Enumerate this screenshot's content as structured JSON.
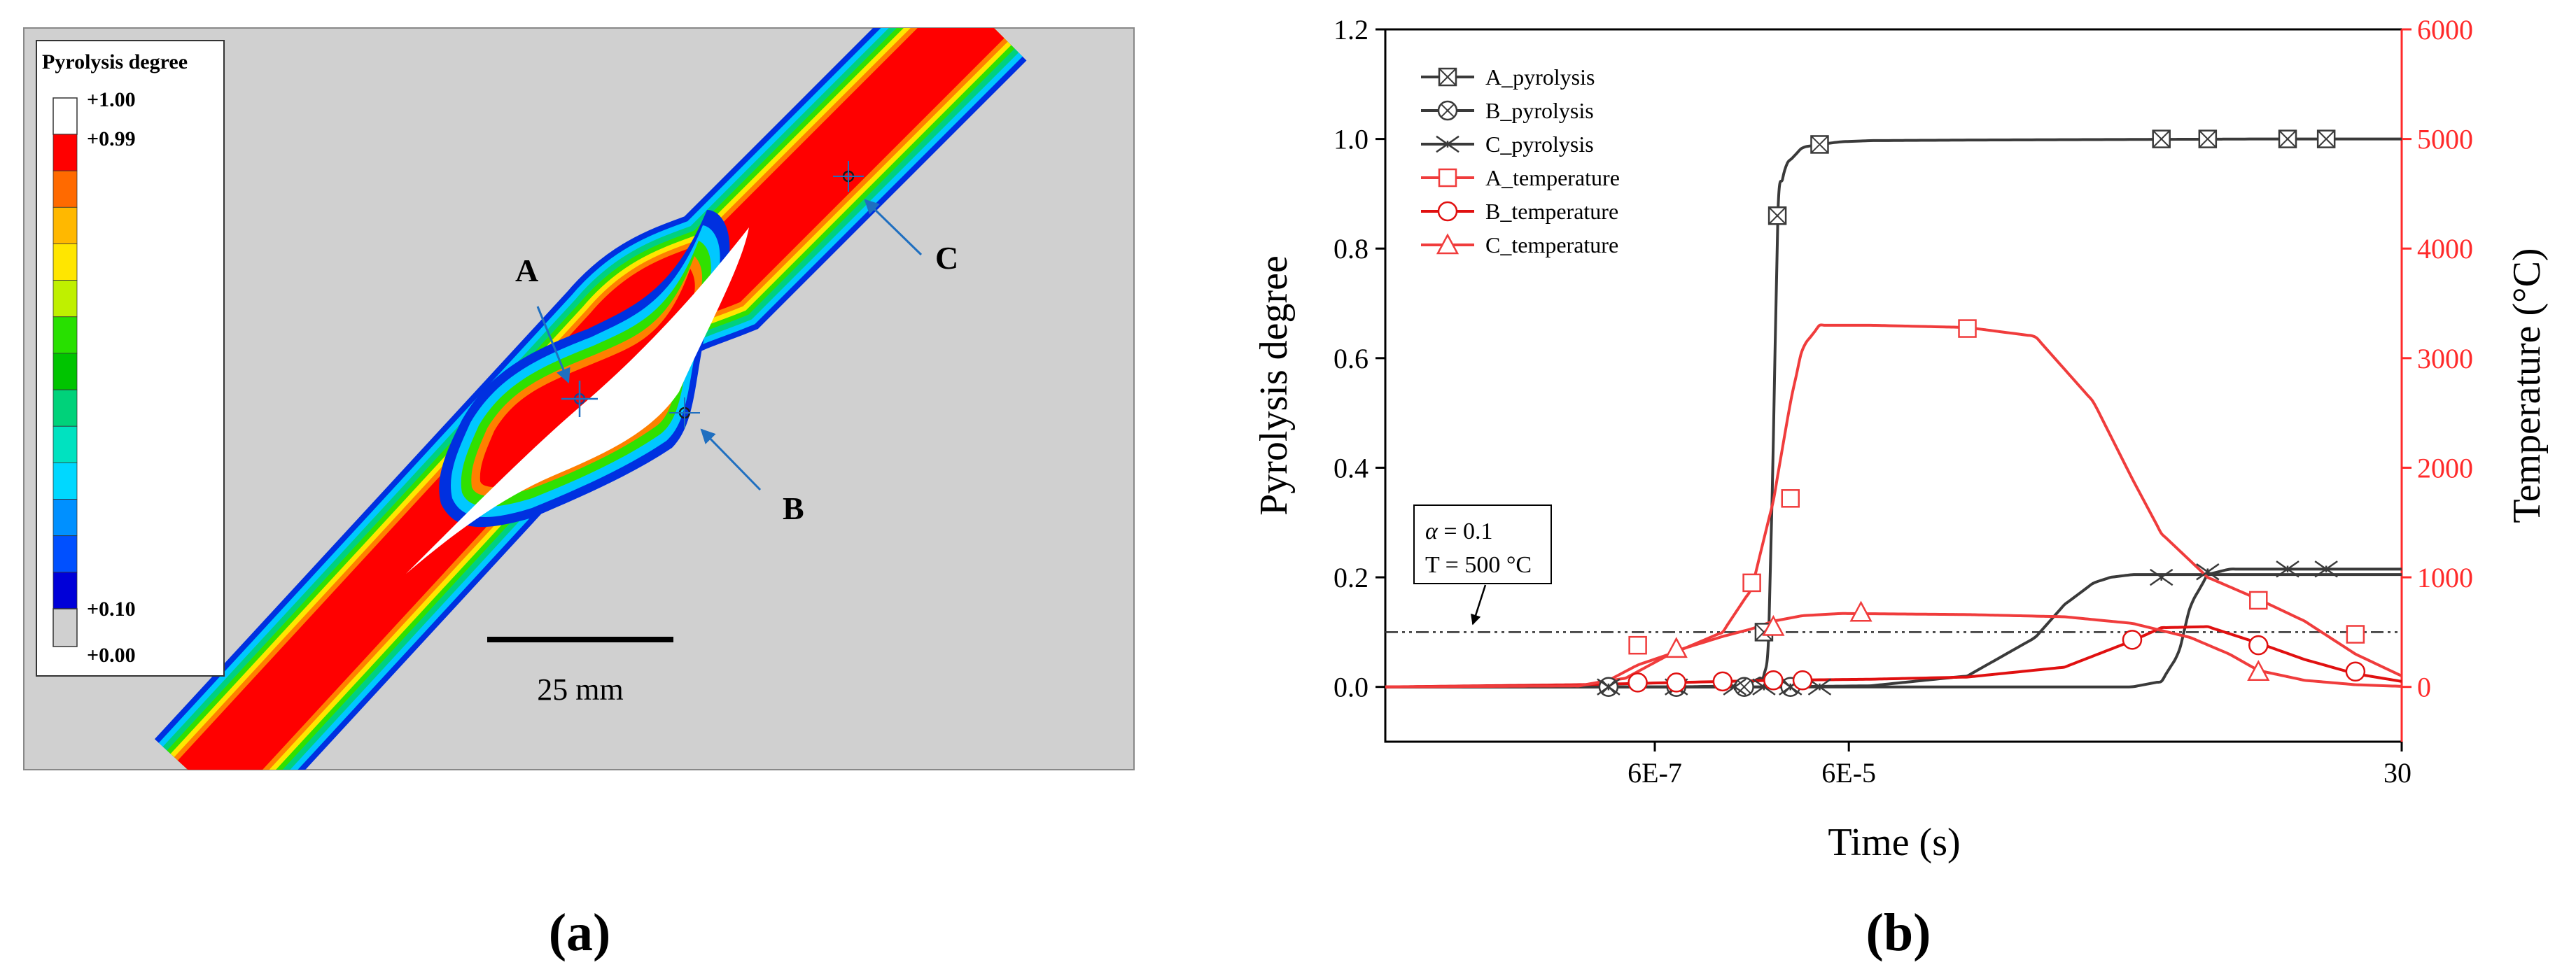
{
  "panel_a": {
    "label": "(a)",
    "legend": {
      "title": "Pyrolysis degree",
      "tick_labels": [
        "+1.00",
        "+0.99",
        "+0.10",
        "+0.00"
      ],
      "colors": [
        "#ff0000",
        "#ff6a00",
        "#ffb800",
        "#ffe600",
        "#bff000",
        "#28e000",
        "#00c400",
        "#00d27a",
        "#00e2c0",
        "#00d8ff",
        "#0090ff",
        "#0050ff",
        "#0000d8"
      ]
    },
    "point_labels": [
      "A",
      "B",
      "C"
    ],
    "scale_bar_label": "25 mm",
    "colors": {
      "red_zone": "#ff0000",
      "background": "#d0d0d0",
      "arrow": "#1f6fc0"
    }
  },
  "panel_b": {
    "label": "(b)"
  },
  "chart_data": {
    "type": "line",
    "xlabel": "Time (s)",
    "ylabel": "Pyrolysis degree",
    "y2label": "Temperature (°C)",
    "xscale": "log",
    "xlim": [
      1e-09,
      30
    ],
    "ylim": [
      -0.1,
      1.2
    ],
    "y2lim": [
      -500,
      6000
    ],
    "x_tick_values": [
      6e-07,
      6e-05,
      30
    ],
    "x_tick_labels": [
      "6E-7",
      "6E-5",
      "30"
    ],
    "y_ticks": [
      0.0,
      0.2,
      0.4,
      0.6,
      0.8,
      1.0,
      1.2
    ],
    "y_tick_labels": [
      "0.0",
      "0.2",
      "0.4",
      "0.6",
      "0.8",
      "1.0",
      "1.2"
    ],
    "y2_ticks": [
      0,
      1000,
      2000,
      3000,
      4000,
      5000,
      6000
    ],
    "y2_tick_labels": [
      "0",
      "1000",
      "2000",
      "3000",
      "4000",
      "5000",
      "6000"
    ],
    "threshold": {
      "y": 0.1,
      "annotation_line1_var": "α",
      "annotation_line1_rest": " = 0.1",
      "annotation_line2": "T = 500 °C"
    },
    "series": [
      {
        "name": "A_pyrolysis",
        "axis": "left",
        "color": "#3a3a3a",
        "marker": "square-x",
        "x": [
          1e-09,
          1e-07,
          1e-06,
          5e-06,
          8e-06,
          9e-06,
          1e-05,
          1.1e-05,
          1.3e-05,
          2e-05,
          3e-05,
          5e-05,
          0.0001,
          0.001,
          1,
          30
        ],
        "y": [
          0,
          0,
          0,
          0.002,
          0.02,
          0.1,
          0.45,
          0.86,
          0.95,
          0.985,
          0.99,
          0.995,
          0.997,
          0.998,
          1.0,
          1.0
        ],
        "marker_x": [
          8e-06,
          1.1e-05,
          3e-05,
          0.1,
          0.3,
          2,
          5
        ],
        "marker_y": [
          0.1,
          0.86,
          0.99,
          1.0,
          1.0,
          1.0,
          1.0
        ]
      },
      {
        "name": "B_pyrolysis",
        "axis": "left",
        "color": "#3a3a3a",
        "marker": "circle-x",
        "x": [
          1e-09,
          1e-05,
          0.0001,
          0.001,
          0.005,
          0.01,
          0.02,
          0.03,
          0.05,
          0.1,
          1,
          30
        ],
        "y": [
          0,
          0,
          0.002,
          0.02,
          0.09,
          0.15,
          0.19,
          0.2,
          0.205,
          0.205,
          0.205,
          0.205
        ],
        "marker_x": [
          2e-07,
          1e-06,
          5e-06,
          1.5e-05
        ],
        "marker_y": [
          0,
          0,
          0,
          0
        ]
      },
      {
        "name": "C_pyrolysis",
        "axis": "left",
        "color": "#3a3a3a",
        "marker": "asterisk",
        "x": [
          1e-09,
          0.05,
          0.1,
          0.15,
          0.2,
          0.3,
          0.5,
          1,
          30
        ],
        "y": [
          0,
          0,
          0.01,
          0.06,
          0.15,
          0.205,
          0.215,
          0.215,
          0.215
        ],
        "marker_x": [
          2e-07,
          1e-06,
          4e-06,
          8e-06,
          1.5e-05,
          3e-05,
          0.1,
          0.3,
          2,
          5
        ],
        "marker_y": [
          0,
          0,
          0,
          0,
          0,
          0,
          0.2,
          0.21,
          0.215,
          0.215
        ]
      },
      {
        "name": "A_temperature",
        "axis": "right",
        "color": "#f03c3c",
        "marker": "square",
        "x": [
          1e-09,
          1e-07,
          2e-07,
          4e-07,
          1e-06,
          3e-06,
          6e-06,
          1e-05,
          1.5e-05,
          2e-05,
          3e-05,
          0.0001,
          0.001,
          0.005,
          0.02,
          0.05,
          0.1,
          0.3,
          1,
          3,
          10,
          30
        ],
        "y": [
          0,
          10,
          60,
          200,
          320,
          500,
          900,
          1700,
          2600,
          3100,
          3300,
          3300,
          3280,
          3200,
          2600,
          1900,
          1400,
          1000,
          800,
          600,
          300,
          100
        ],
        "marker_x": [
          4e-07,
          6e-06,
          1.5e-05,
          0.001,
          1,
          10
        ],
        "marker_y": [
          380,
          950,
          1720,
          3270,
          790,
          480
        ]
      },
      {
        "name": "B_temperature",
        "axis": "right",
        "color": "#e01010",
        "marker": "circle",
        "x": [
          1e-09,
          1e-07,
          1e-06,
          1e-05,
          0.0001,
          0.001,
          0.01,
          0.05,
          0.1,
          0.3,
          1,
          3,
          10,
          30
        ],
        "y": [
          0,
          20,
          40,
          60,
          70,
          90,
          180,
          420,
          540,
          550,
          400,
          250,
          120,
          50
        ],
        "marker_x": [
          4e-07,
          1e-06,
          3e-06,
          1e-05,
          2e-05,
          0.05,
          1,
          10
        ],
        "marker_y": [
          40,
          40,
          50,
          60,
          60,
          430,
          380,
          140
        ]
      },
      {
        "name": "C_temperature",
        "axis": "right",
        "color": "#f03c3c",
        "marker": "triangle",
        "x": [
          1e-09,
          1e-07,
          3e-07,
          1e-06,
          3e-06,
          6e-06,
          1e-05,
          2e-05,
          5e-05,
          0.001,
          0.01,
          0.05,
          0.2,
          0.5,
          1,
          3,
          10,
          30
        ],
        "y": [
          0,
          10,
          80,
          330,
          460,
          530,
          600,
          650,
          670,
          660,
          640,
          580,
          450,
          300,
          150,
          60,
          20,
          5
        ],
        "marker_x": [
          1e-06,
          1e-05,
          8e-05,
          1
        ],
        "marker_y": [
          350,
          550,
          680,
          140
        ]
      }
    ]
  }
}
